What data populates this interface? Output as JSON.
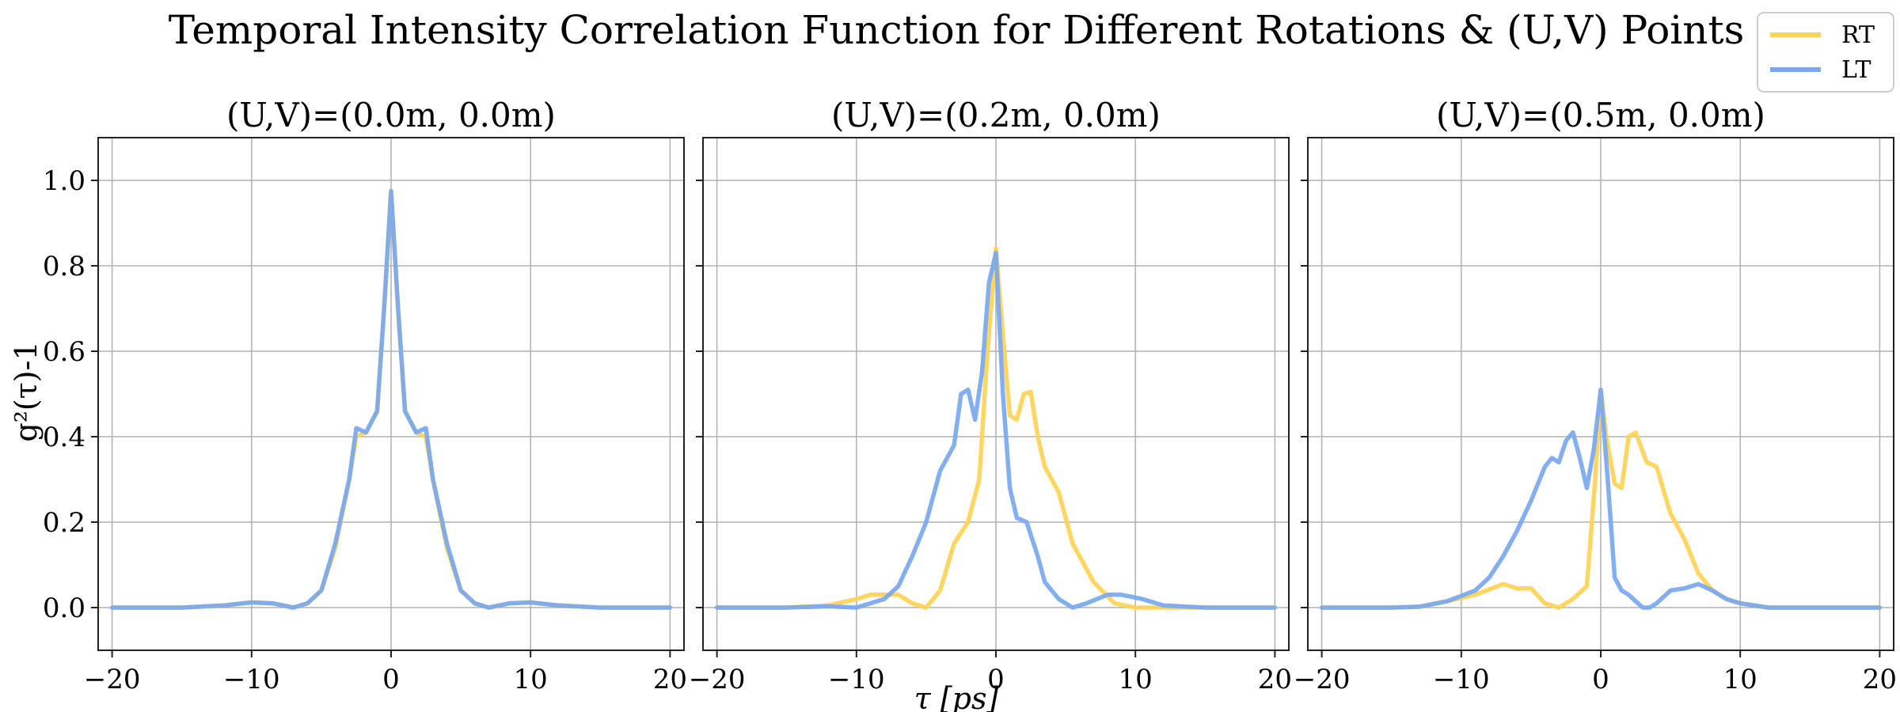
{
  "chart_data": {
    "type": "line",
    "title": "Temporal Intensity Correlation Function for Different Rotations & (U,V) Points",
    "xlabel": "τ [ps]",
    "ylabel": "g²(τ)-1",
    "xlim": [
      -21,
      21
    ],
    "ylim": [
      -0.1,
      1.1
    ],
    "xticks": [
      -20,
      -10,
      0,
      10,
      20
    ],
    "xtick_labels": [
      "−20",
      "−10",
      "0",
      "10",
      "20"
    ],
    "yticks": [
      0.0,
      0.2,
      0.4,
      0.6,
      0.8,
      1.0
    ],
    "ytick_labels": [
      "0.0",
      "0.2",
      "0.4",
      "0.6",
      "0.8",
      "1.0"
    ],
    "grid": true,
    "legend_position": "top-right",
    "legend": [
      {
        "name": "RT",
        "color": "#ffd255"
      },
      {
        "name": "LT",
        "color": "#78a8f0"
      }
    ],
    "panels": [
      {
        "title": "(U,V)=(0.0m, 0.0m)",
        "series": [
          {
            "name": "RT",
            "color": "#ffd255",
            "x": [
              -20,
              -15,
              -12,
              -10,
              -8.5,
              -7,
              -6,
              -5,
              -4,
              -3,
              -2.5,
              -1.8,
              -1,
              -0.5,
              0,
              0.5,
              1,
              1.8,
              2.5,
              3,
              4,
              5,
              6,
              7,
              8.5,
              10,
              12,
              15,
              20
            ],
            "y": [
              0,
              0,
              0.005,
              0.012,
              0.01,
              0,
              0.01,
              0.04,
              0.14,
              0.3,
              0.4,
              0.41,
              0.46,
              0.7,
              0.975,
              0.7,
              0.46,
              0.41,
              0.4,
              0.3,
              0.14,
              0.04,
              0.01,
              0,
              0.01,
              0.012,
              0.005,
              0,
              0
            ]
          },
          {
            "name": "LT",
            "color": "#78a8f0",
            "x": [
              -20,
              -15,
              -12,
              -10,
              -8.5,
              -7,
              -6,
              -5,
              -4,
              -3,
              -2.5,
              -1.8,
              -1,
              -0.5,
              0,
              0.5,
              1,
              1.8,
              2.5,
              3,
              4,
              5,
              6,
              7,
              8.5,
              10,
              12,
              15,
              20
            ],
            "y": [
              0,
              0,
              0.005,
              0.012,
              0.01,
              0,
              0.01,
              0.04,
              0.15,
              0.3,
              0.42,
              0.41,
              0.46,
              0.7,
              0.975,
              0.7,
              0.46,
              0.41,
              0.42,
              0.3,
              0.15,
              0.04,
              0.01,
              0,
              0.01,
              0.012,
              0.005,
              0,
              0
            ]
          }
        ]
      },
      {
        "title": "(U,V)=(0.2m, 0.0m)",
        "series": [
          {
            "name": "RT",
            "color": "#ffd255",
            "x": [
              -20,
              -15,
              -12,
              -10,
              -9,
              -7,
              -6,
              -5,
              -4,
              -3,
              -2,
              -1.2,
              -0.6,
              0,
              0.6,
              1,
              1.5,
              2,
              2.5,
              3,
              3.5,
              4.5,
              5.5,
              7,
              8.5,
              10,
              12,
              15,
              20
            ],
            "y": [
              0,
              0,
              0.005,
              0.02,
              0.03,
              0.03,
              0.01,
              0,
              0.04,
              0.15,
              0.2,
              0.3,
              0.6,
              0.84,
              0.6,
              0.45,
              0.44,
              0.5,
              0.505,
              0.4,
              0.33,
              0.27,
              0.15,
              0.06,
              0.01,
              0,
              0,
              0,
              0
            ]
          },
          {
            "name": "LT",
            "color": "#78a8f0",
            "x": [
              -20,
              -15,
              -12,
              -10,
              -8,
              -7,
              -6,
              -5,
              -4,
              -3,
              -2.5,
              -2,
              -1.5,
              -1,
              -0.5,
              0,
              0.5,
              1,
              1.5,
              2.2,
              3,
              3.5,
              4.5,
              5.5,
              6.5,
              8,
              9,
              10.5,
              12,
              15,
              20
            ],
            "y": [
              0,
              0,
              0.003,
              0,
              0.02,
              0.05,
              0.12,
              0.2,
              0.32,
              0.38,
              0.5,
              0.51,
              0.44,
              0.55,
              0.76,
              0.83,
              0.5,
              0.28,
              0.21,
              0.2,
              0.12,
              0.06,
              0.02,
              0.0,
              0.01,
              0.03,
              0.03,
              0.02,
              0.005,
              0,
              0
            ]
          }
        ]
      },
      {
        "title": "(U,V)=(0.5m, 0.0m)",
        "series": [
          {
            "name": "RT",
            "color": "#ffd255",
            "x": [
              -20,
              -15,
              -13,
              -11,
              -9,
              -7,
              -6,
              -5,
              -4,
              -3,
              -2,
              -1,
              -0.4,
              0,
              0.4,
              1,
              1.5,
              2,
              2.5,
              3.3,
              4,
              5,
              6,
              7,
              8,
              9,
              10,
              12,
              15,
              20
            ],
            "y": [
              0,
              0,
              0.002,
              0.015,
              0.03,
              0.055,
              0.045,
              0.045,
              0.01,
              0.0,
              0.02,
              0.05,
              0.3,
              0.51,
              0.4,
              0.29,
              0.28,
              0.4,
              0.41,
              0.34,
              0.33,
              0.22,
              0.16,
              0.08,
              0.04,
              0.02,
              0.01,
              0,
              0,
              0
            ]
          },
          {
            "name": "LT",
            "color": "#78a8f0",
            "x": [
              -20,
              -15,
              -13,
              -11,
              -9,
              -8,
              -7,
              -6,
              -5,
              -4,
              -3.5,
              -3,
              -2.5,
              -2,
              -1.5,
              -1,
              -0.5,
              0,
              0.5,
              1,
              1.5,
              2,
              3,
              3.5,
              4,
              5,
              6,
              7,
              8,
              9,
              10,
              12,
              15,
              20
            ],
            "y": [
              0,
              0,
              0.002,
              0.015,
              0.04,
              0.07,
              0.12,
              0.18,
              0.25,
              0.33,
              0.35,
              0.34,
              0.39,
              0.41,
              0.35,
              0.28,
              0.37,
              0.51,
              0.3,
              0.07,
              0.04,
              0.03,
              0.0,
              0.0,
              0.01,
              0.04,
              0.045,
              0.055,
              0.04,
              0.02,
              0.01,
              0,
              0,
              0
            ]
          }
        ]
      }
    ]
  }
}
